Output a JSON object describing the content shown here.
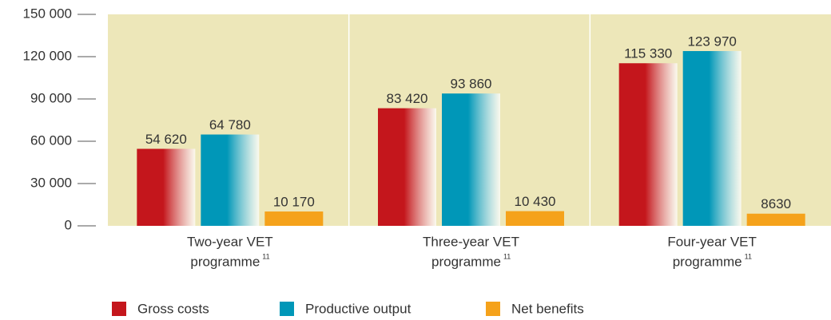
{
  "chart_data": {
    "type": "bar",
    "categories": [
      [
        "Two-year VET",
        "programme"
      ],
      [
        "Three-year VET",
        "programme"
      ],
      [
        "Four-year VET",
        "programme"
      ]
    ],
    "category_footnotes": [
      "11",
      "11",
      "11"
    ],
    "series": [
      {
        "name": "Gross costs",
        "color": "#c4161c",
        "values": [
          54620,
          83420,
          115330
        ],
        "value_labels": [
          "54 620",
          "83 420",
          "115 330"
        ]
      },
      {
        "name": "Productive output",
        "color": "#0097b8",
        "values": [
          64780,
          93860,
          123970
        ],
        "value_labels": [
          "64 780",
          "93 860",
          "123 970"
        ]
      },
      {
        "name": "Net benefits",
        "color": "#f5a21b",
        "values": [
          10170,
          10430,
          8630
        ],
        "value_labels": [
          "10 170",
          "10 430",
          "8630"
        ]
      }
    ],
    "ylim": [
      0,
      150000
    ],
    "yticks": [
      0,
      {
        "value": 30000,
        "label": "30 000"
      },
      {
        "value": 60000,
        "label": "60 000"
      },
      {
        "value": 90000,
        "label": "90 000"
      },
      {
        "value": 120000,
        "label": "120 000"
      },
      {
        "value": 150000,
        "label": "150 000"
      }
    ],
    "background": "#ede7b9"
  }
}
